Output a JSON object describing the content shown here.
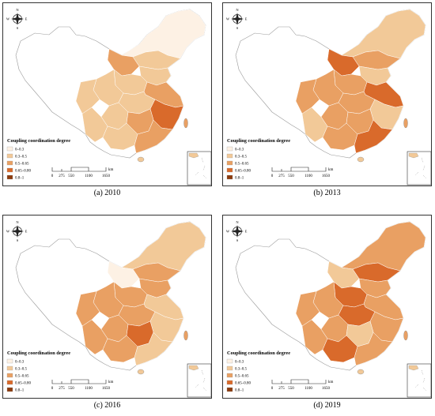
{
  "panels": [
    {
      "caption": "(a) 2010",
      "level_weights": [
        0.05,
        0.55,
        0.35,
        0.05,
        0.0
      ]
    },
    {
      "caption": "(b) 2013",
      "level_weights": [
        0.05,
        0.25,
        0.55,
        0.15,
        0.0
      ]
    },
    {
      "caption": "(c) 2016",
      "level_weights": [
        0.02,
        0.28,
        0.55,
        0.15,
        0.0
      ]
    },
    {
      "caption": "(d) 2019",
      "level_weights": [
        0.0,
        0.18,
        0.57,
        0.25,
        0.0
      ]
    }
  ],
  "legend": {
    "title": "Coupling coordination degree",
    "classes": [
      {
        "label": "0–0.3",
        "color": "#fdf1e4"
      },
      {
        "label": "0.3–0.5",
        "color": "#f2c998"
      },
      {
        "label": "0.5–0.65",
        "color": "#e9a063"
      },
      {
        "label": "0.65–0.80",
        "color": "#d96a2b"
      },
      {
        "label": "0.8–1",
        "color": "#8c3b0d"
      }
    ]
  },
  "scale_bar": {
    "ticks": [
      "0",
      "275",
      "550",
      "1100",
      "1650"
    ],
    "unit": "km"
  },
  "compass": {
    "n": "N",
    "s": "S",
    "e": "E",
    "w": "W"
  }
}
